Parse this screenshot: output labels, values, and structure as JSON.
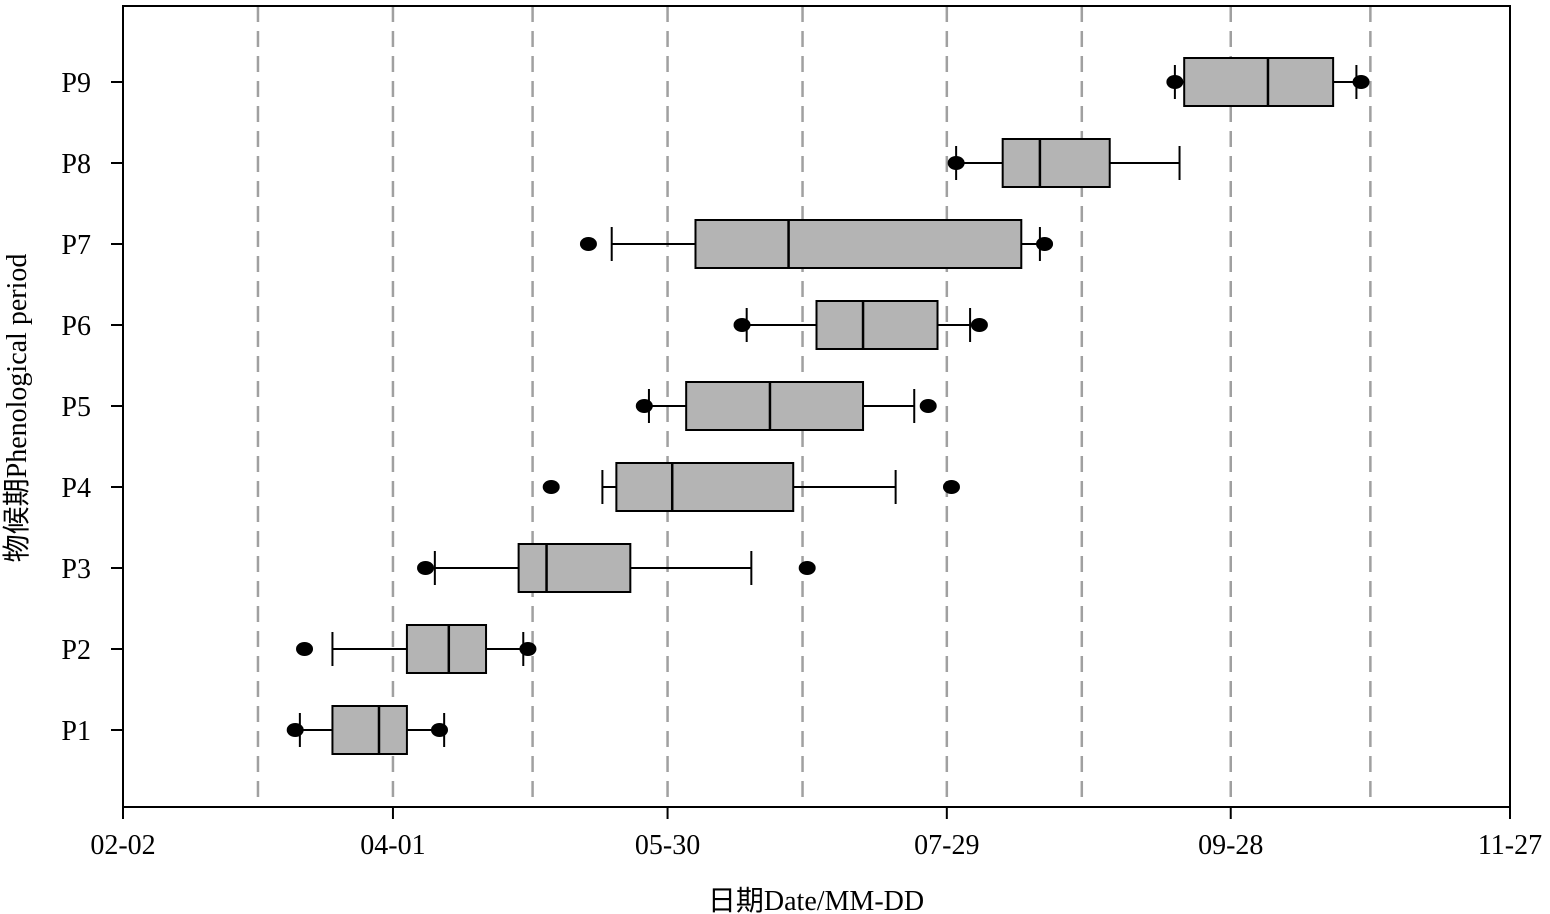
{
  "chart_data": {
    "type": "boxplot",
    "orientation": "horizontal",
    "xlabel": "日期Date/MM-DD",
    "ylabel": "物候期Phenological period",
    "xlim": [
      "02-02",
      "11-27"
    ],
    "x_ticks": [
      "02-02",
      "04-01",
      "05-30",
      "07-29",
      "09-28",
      "11-27"
    ],
    "grid_lines_x": [
      "03-03",
      "04-01",
      "05-01",
      "05-30",
      "06-28",
      "07-29",
      "08-27",
      "09-28",
      "10-28"
    ],
    "grid": "vertical dashed",
    "colors": {
      "box_fill": "#b4b4b4",
      "grid": "#a0a0a0",
      "line": "#000000"
    },
    "categories": [
      "P1",
      "P2",
      "P3",
      "P4",
      "P5",
      "P6",
      "P7",
      "P8",
      "P9"
    ],
    "boxes": [
      {
        "name": "P1",
        "whisker_low": "03-12",
        "q1": "03-19",
        "median": "03-29",
        "q3": "04-04",
        "whisker_high": "04-12",
        "outliers": [
          "03-11",
          "04-11"
        ]
      },
      {
        "name": "P2",
        "whisker_low": "03-19",
        "q1": "04-04",
        "median": "04-13",
        "q3": "04-21",
        "whisker_high": "04-29",
        "outliers": [
          "03-13",
          "04-30"
        ]
      },
      {
        "name": "P3",
        "whisker_low": "04-10",
        "q1": "04-28",
        "median": "05-04",
        "q3": "05-22",
        "whisker_high": "06-17",
        "outliers": [
          "04-08",
          "06-29"
        ]
      },
      {
        "name": "P4",
        "whisker_low": "05-16",
        "q1": "05-19",
        "median": "05-31",
        "q3": "06-26",
        "whisker_high": "07-18",
        "outliers": [
          "05-05",
          "07-30"
        ]
      },
      {
        "name": "P5",
        "whisker_low": "05-26",
        "q1": "06-03",
        "median": "06-21",
        "q3": "07-11",
        "whisker_high": "07-22",
        "outliers": [
          "05-25",
          "07-25"
        ]
      },
      {
        "name": "P6",
        "whisker_low": "06-16",
        "q1": "07-01",
        "median": "07-11",
        "q3": "07-27",
        "whisker_high": "08-03",
        "outliers": [
          "06-15",
          "08-05"
        ]
      },
      {
        "name": "P7",
        "whisker_low": "05-18",
        "q1": "06-05",
        "median": "06-25",
        "q3": "08-14",
        "whisker_high": "08-18",
        "outliers": [
          "05-13",
          "08-19"
        ]
      },
      {
        "name": "P8",
        "whisker_low": "07-31",
        "q1": "08-10",
        "median": "08-18",
        "q3": "09-02",
        "whisker_high": "09-17",
        "outliers": [
          "07-31"
        ]
      },
      {
        "name": "P9",
        "whisker_low": "09-16",
        "q1": "09-18",
        "median": "10-06",
        "q3": "10-20",
        "whisker_high": "10-25",
        "outliers": [
          "09-16",
          "10-26"
        ]
      }
    ]
  }
}
